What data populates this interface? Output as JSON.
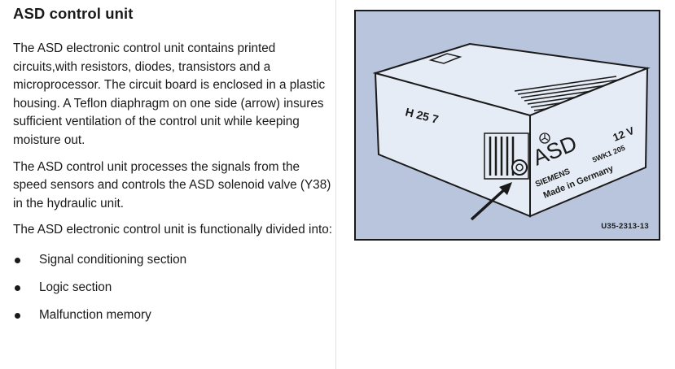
{
  "heading": "ASD control unit",
  "paragraphs": [
    "The ASD electronic control unit contains printed circuits,with resistors, diodes, transistors and a microprocessor. The circuit board is enclosed in a plastic housing. A Teflon diaphragm on one side (arrow) insures sufficient ventilation of the control unit while keeping moisture out.",
    "The ASD control unit processes the signals from the speed sensors and controls the ASD solenoid valve (Y38) in the hydraulic unit.",
    "The ASD electronic control unit is functionally divided into:"
  ],
  "list_items": [
    "Signal conditioning section",
    "Logic section",
    "Malfunction memory"
  ],
  "figure": {
    "housing_marking": "H 25 7",
    "brand": "ASD",
    "voltage": "12 V",
    "maker": "SIEMENS",
    "part_no": "5WK1 205",
    "origin": "Made in Germany",
    "label": "U35-2313-13"
  }
}
